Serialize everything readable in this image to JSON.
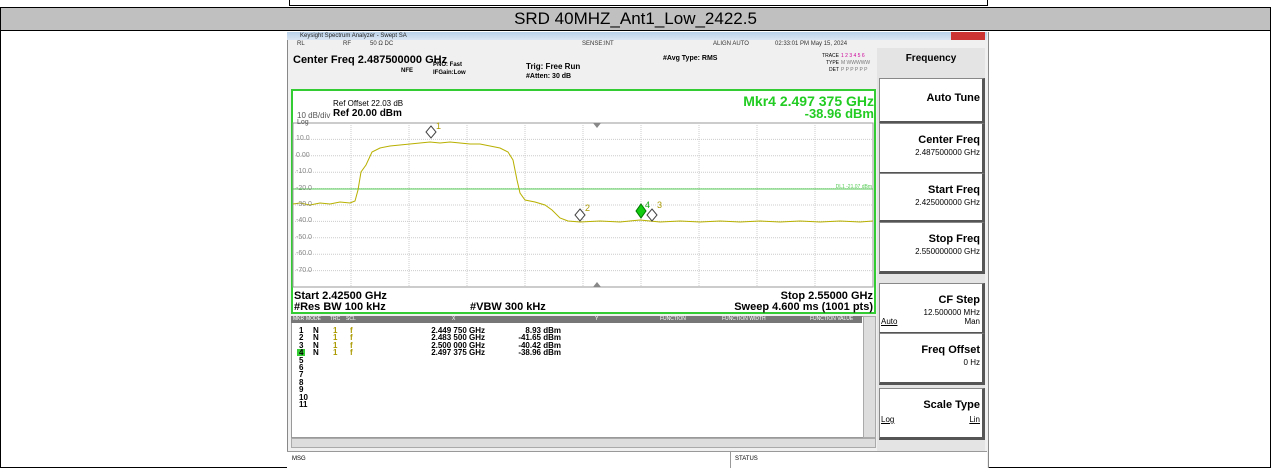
{
  "header": {
    "title": "SRD 40MHZ_Ant1_Low_2422.5"
  },
  "window": {
    "title": "Keysight Spectrum Analyzer - Swept SA"
  },
  "status_bar": [
    "RL",
    "RF",
    "50 Ω  DC",
    "SENSE:INT",
    "ALIGN AUTO",
    "02:33:01 PM May 15, 2024"
  ],
  "settings": {
    "center_freq": "Center Freq 2.487500000 GHz",
    "nfe": "NFE",
    "pno": "PNO: Fast",
    "ifgain": "IFGain:Low",
    "trig": "Trig: Free Run",
    "atten": "#Atten: 30 dB",
    "avg": "#Avg Type: RMS",
    "trace": "TRACE",
    "trace_nums": "1 2 3 4 5 6",
    "type": "TYPE",
    "type_val": "M WWWWW",
    "det": "DET",
    "det_val": "P P P P P P"
  },
  "plot": {
    "ref_offset": "Ref Offset 22.03 dB",
    "scale": "10 dB/div",
    "ref": "Ref 20.00 dBm",
    "log": "Log",
    "marker_freq": "Mkr4 2.497 375 GHz",
    "marker_amp": "-38.96 dBm",
    "y_labels": [
      "10.0",
      "0.00",
      "-10.0",
      "-20.0",
      "-30.0",
      "-40.0",
      "-50.0",
      "-60.0",
      "-70.0"
    ],
    "display_line": "DL1 -21.07 dBm",
    "markers": [
      "1",
      "2",
      "3",
      "4"
    ],
    "start": "Start 2.42500 GHz",
    "stop": "Stop 2.55000 GHz",
    "rbw": "#Res BW 100 kHz",
    "vbw": "#VBW 300 kHz",
    "sweep": "Sweep  4.600 ms (1001 pts)"
  },
  "marker_table": {
    "columns": [
      "MKR",
      "MODE",
      "TRC",
      "SCL",
      "X",
      "Y",
      "FUNCTION",
      "FUNCTION WIDTH",
      "FUNCTION VALUE"
    ],
    "rows": [
      [
        "1",
        "N",
        "1",
        "f",
        "2.449 750 GHz",
        "8.93 dBm"
      ],
      [
        "2",
        "N",
        "1",
        "f",
        "2.483 500 GHz",
        "-41.65 dBm"
      ],
      [
        "3",
        "N",
        "1",
        "f",
        "2.500 000 GHz",
        "-40.42 dBm"
      ],
      [
        "4",
        "N",
        "1",
        "f",
        "2.497 375 GHz",
        "-38.96 dBm"
      ]
    ],
    "empty_rows": [
      "5",
      "6",
      "7",
      "8",
      "9",
      "10",
      "11"
    ]
  },
  "msg": "MSG",
  "status": "STATUS",
  "menu": {
    "title": "Frequency",
    "items": [
      {
        "label": "Auto Tune"
      },
      {
        "label": "Center Freq",
        "value": "2.487500000 GHz"
      },
      {
        "label": "Start Freq",
        "value": "2.425000000 GHz"
      },
      {
        "label": "Stop Freq",
        "value": "2.550000000 GHz"
      },
      {
        "label": "CF Step",
        "value": "12.500000 MHz",
        "options": [
          "Auto",
          "Man"
        ]
      },
      {
        "label": "Freq Offset",
        "value": "0 Hz"
      },
      {
        "label": "Scale Type",
        "options": [
          "Log",
          "Lin"
        ]
      }
    ]
  }
}
